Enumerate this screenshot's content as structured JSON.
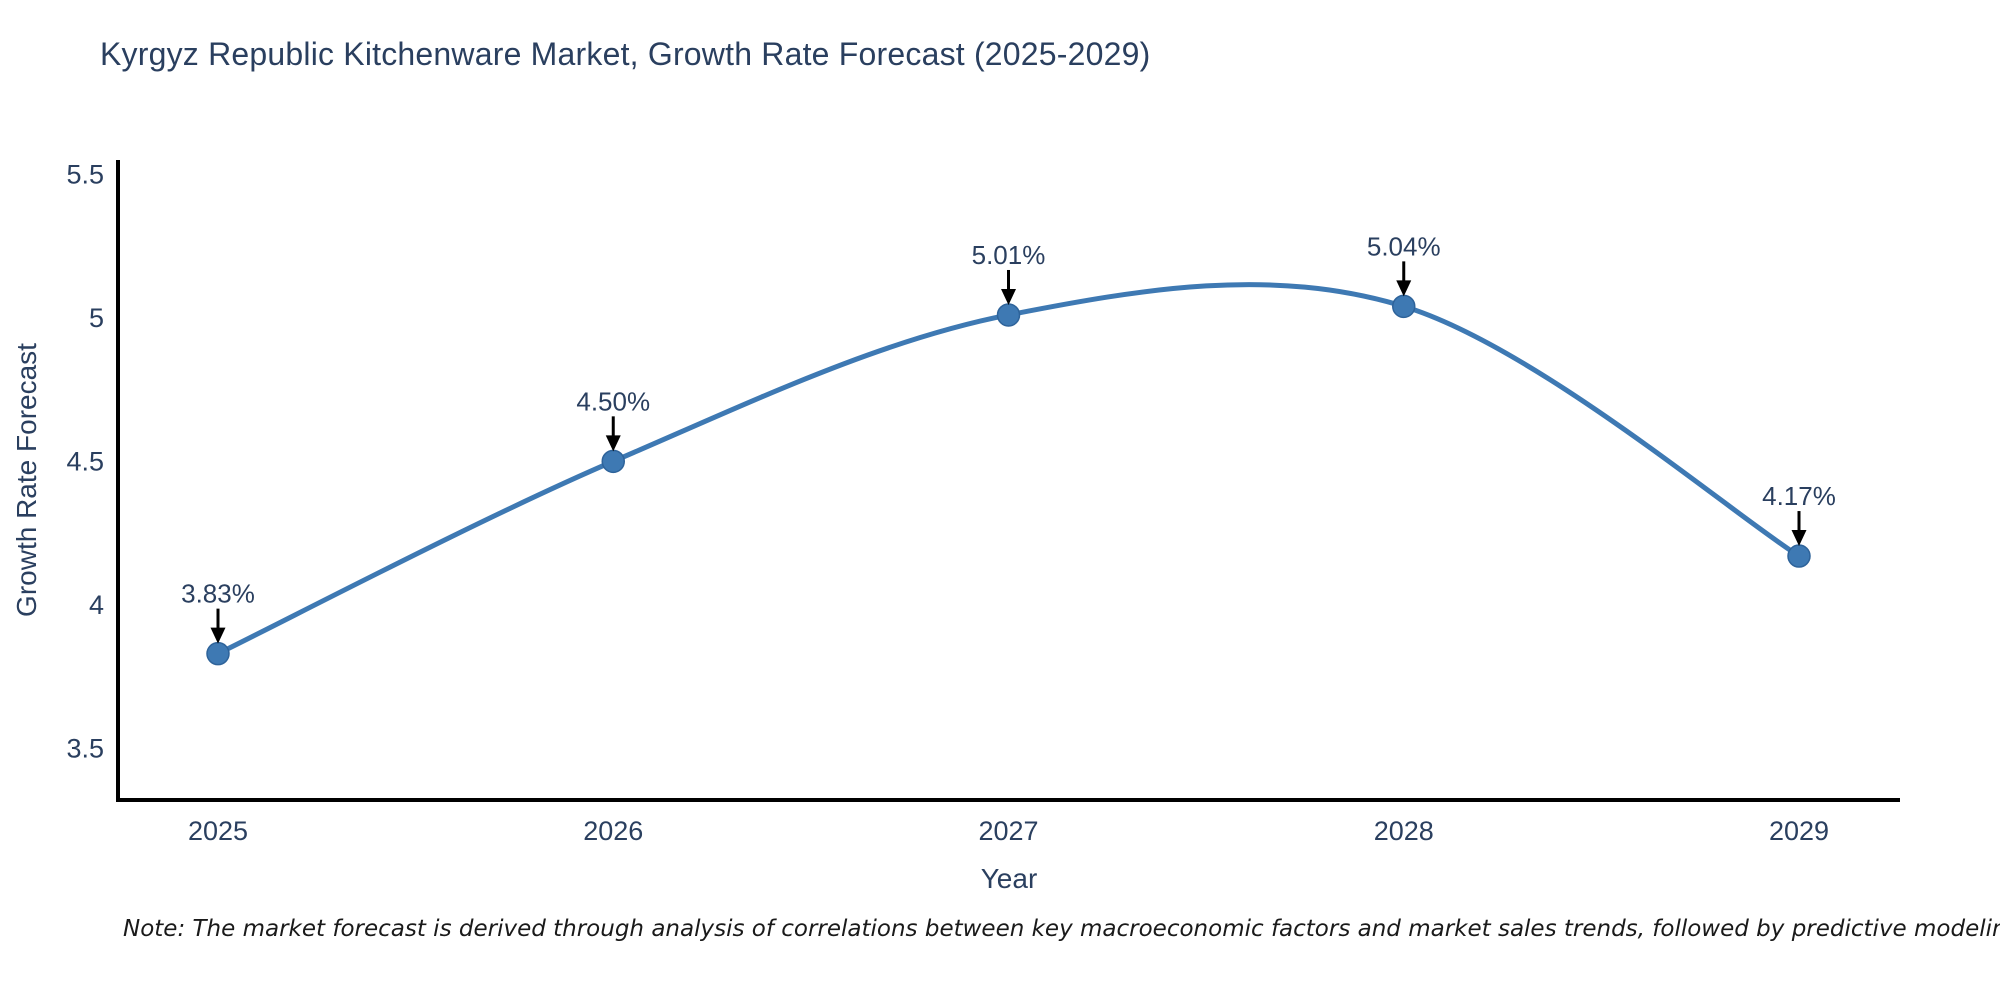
{
  "title": "Kyrgyz Republic Kitchenware Market, Growth Rate Forecast (2025-2029)",
  "note": "Note: The market forecast is derived through analysis of correlations between key macroeconomic factors and market sales trends, followed by predictive modeling to project future sales",
  "chart_data": {
    "type": "line",
    "line_shape": "spline",
    "title": "Kyrgyz Republic Kitchenware Market, Growth Rate Forecast (2025-2029)",
    "xlabel": "Year",
    "ylabel": "Growth Rate Forecast",
    "x": [
      2025,
      2026,
      2027,
      2028,
      2029
    ],
    "values": [
      3.83,
      4.5,
      5.01,
      5.04,
      4.17
    ],
    "point_labels": [
      "3.83%",
      "4.50%",
      "5.01%",
      "5.04%",
      "4.17%"
    ],
    "x_ticks": [
      "2025",
      "2026",
      "2027",
      "2028",
      "2029"
    ],
    "y_ticks": [
      5.5,
      5,
      4.5,
      4,
      3.5
    ],
    "y_tick_labels": [
      "5.5",
      "5",
      "4.5",
      "4",
      "3.5"
    ],
    "ylim": [
      3.32,
      5.55
    ],
    "grid": false,
    "legend": "none",
    "colors": {
      "line": "#3E79B3",
      "marker": "#3E79B3",
      "axis": "#000000",
      "text": "#2a3f5f",
      "annotation_arrow": "#000000",
      "note_text": "#1a1a1a"
    }
  }
}
